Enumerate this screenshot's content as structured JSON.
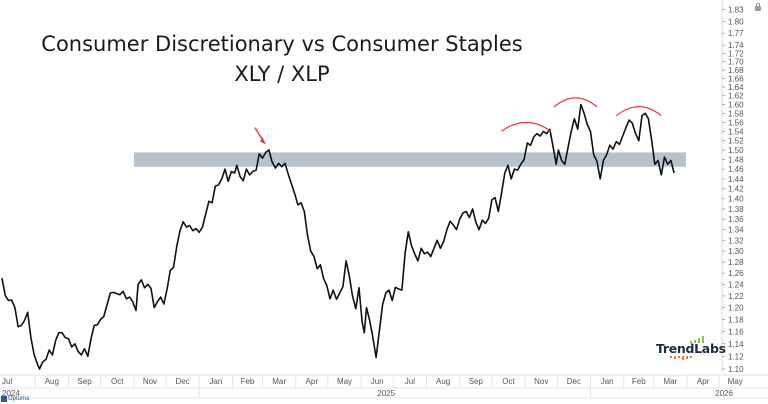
{
  "chart_data": {
    "type": "line",
    "title": "Consumer Discretionary vs Consumer Staples",
    "subtitle": "XLY / XLP",
    "xlabel": "",
    "ylabel": "",
    "y_scale": "log",
    "ylim": [
      1.095,
      1.84
    ],
    "xlim": [
      "2024-07-01",
      "2026-05-31"
    ],
    "grid": false,
    "y_ticks": [
      "1.83",
      "1.80",
      "1.77",
      "1.74",
      "1.72",
      "1.70",
      "1.68",
      "1.66",
      "1.64",
      "1.62",
      "1.60",
      "1.58",
      "1.56",
      "1.54",
      "1.52",
      "1.50",
      "1.48",
      "1.46",
      "1.44",
      "1.42",
      "1.40",
      "1.38",
      "1.36",
      "1.34",
      "1.32",
      "1.30",
      "1.28",
      "1.26",
      "1.24",
      "1.22",
      "1.20",
      "1.18",
      "1.16",
      "1.14",
      "1.12",
      "1.10"
    ],
    "x_month_ticks": [
      {
        "label": "Jul",
        "date": "2024-07-01"
      },
      {
        "label": "Aug",
        "date": "2024-08-01"
      },
      {
        "label": "Sep",
        "date": "2024-09-01"
      },
      {
        "label": "Oct",
        "date": "2024-10-01"
      },
      {
        "label": "Nov",
        "date": "2024-11-01"
      },
      {
        "label": "Dec",
        "date": "2024-12-01"
      },
      {
        "label": "Jan",
        "date": "2025-01-01"
      },
      {
        "label": "Feb",
        "date": "2025-02-01"
      },
      {
        "label": "Mar",
        "date": "2025-03-01"
      },
      {
        "label": "Apr",
        "date": "2025-04-01"
      },
      {
        "label": "May",
        "date": "2025-05-01"
      },
      {
        "label": "Jun",
        "date": "2025-06-01"
      },
      {
        "label": "Jul",
        "date": "2025-07-01"
      },
      {
        "label": "Aug",
        "date": "2025-08-01"
      },
      {
        "label": "Sep",
        "date": "2025-09-01"
      },
      {
        "label": "Oct",
        "date": "2025-10-01"
      },
      {
        "label": "Nov",
        "date": "2025-11-01"
      },
      {
        "label": "Dec",
        "date": "2025-12-01"
      },
      {
        "label": "Jan",
        "date": "2026-01-01"
      },
      {
        "label": "Feb",
        "date": "2026-02-01"
      },
      {
        "label": "Mar",
        "date": "2026-03-01"
      },
      {
        "label": "Apr",
        "date": "2026-04-01"
      },
      {
        "label": "May",
        "date": "2026-05-01"
      }
    ],
    "x_year_labels": [
      {
        "label": "2024",
        "date": "2024-07-01",
        "align": "left"
      },
      {
        "label": "2025",
        "date": "2025-07-01",
        "align": "center"
      },
      {
        "label": "2026",
        "date": "2026-05-01",
        "align": "left"
      }
    ],
    "series": [
      {
        "name": "XLY / XLP",
        "color": "#111111",
        "points": [
          [
            "2024-07-01",
            1.251
          ],
          [
            "2024-07-04",
            1.221
          ],
          [
            "2024-07-07",
            1.212
          ],
          [
            "2024-07-10",
            1.213
          ],
          [
            "2024-07-13",
            1.2
          ],
          [
            "2024-07-16",
            1.168
          ],
          [
            "2024-07-19",
            1.17
          ],
          [
            "2024-07-22",
            1.178
          ],
          [
            "2024-07-25",
            1.192
          ],
          [
            "2024-07-28",
            1.15
          ],
          [
            "2024-07-31",
            1.122
          ],
          [
            "2024-08-03",
            1.108
          ],
          [
            "2024-08-05",
            1.1
          ],
          [
            "2024-08-08",
            1.111
          ],
          [
            "2024-08-11",
            1.115
          ],
          [
            "2024-08-14",
            1.13
          ],
          [
            "2024-08-17",
            1.122
          ],
          [
            "2024-08-20",
            1.145
          ],
          [
            "2024-08-23",
            1.158
          ],
          [
            "2024-08-26",
            1.158
          ],
          [
            "2024-08-29",
            1.15
          ],
          [
            "2024-09-01",
            1.148
          ],
          [
            "2024-09-04",
            1.135
          ],
          [
            "2024-09-07",
            1.14
          ],
          [
            "2024-09-10",
            1.128
          ],
          [
            "2024-09-13",
            1.122
          ],
          [
            "2024-09-16",
            1.132
          ],
          [
            "2024-09-19",
            1.12
          ],
          [
            "2024-09-22",
            1.148
          ],
          [
            "2024-09-25",
            1.17
          ],
          [
            "2024-09-28",
            1.171
          ],
          [
            "2024-10-01",
            1.18
          ],
          [
            "2024-10-04",
            1.185
          ],
          [
            "2024-10-07",
            1.205
          ],
          [
            "2024-10-10",
            1.225
          ],
          [
            "2024-10-13",
            1.226
          ],
          [
            "2024-10-16",
            1.224
          ],
          [
            "2024-10-19",
            1.222
          ],
          [
            "2024-10-22",
            1.228
          ],
          [
            "2024-10-25",
            1.215
          ],
          [
            "2024-10-28",
            1.218
          ],
          [
            "2024-10-31",
            1.21
          ],
          [
            "2024-11-01",
            1.204
          ],
          [
            "2024-11-03",
            1.195
          ],
          [
            "2024-11-05",
            1.24
          ],
          [
            "2024-11-08",
            1.248
          ],
          [
            "2024-11-11",
            1.234
          ],
          [
            "2024-11-14",
            1.24
          ],
          [
            "2024-11-17",
            1.233
          ],
          [
            "2024-11-20",
            1.2
          ],
          [
            "2024-11-23",
            1.21
          ],
          [
            "2024-11-26",
            1.218
          ],
          [
            "2024-11-29",
            1.206
          ],
          [
            "2024-12-02",
            1.232
          ],
          [
            "2024-12-05",
            1.265
          ],
          [
            "2024-12-08",
            1.27
          ],
          [
            "2024-12-11",
            1.308
          ],
          [
            "2024-12-14",
            1.338
          ],
          [
            "2024-12-17",
            1.355
          ],
          [
            "2024-12-20",
            1.345
          ],
          [
            "2024-12-23",
            1.348
          ],
          [
            "2024-12-26",
            1.338
          ],
          [
            "2024-12-29",
            1.342
          ],
          [
            "2025-01-01",
            1.335
          ],
          [
            "2025-01-04",
            1.345
          ],
          [
            "2025-01-07",
            1.37
          ],
          [
            "2025-01-10",
            1.395
          ],
          [
            "2025-01-13",
            1.392
          ],
          [
            "2025-01-16",
            1.425
          ],
          [
            "2025-01-19",
            1.428
          ],
          [
            "2025-01-22",
            1.44
          ],
          [
            "2025-01-25",
            1.46
          ],
          [
            "2025-01-28",
            1.435
          ],
          [
            "2025-01-31",
            1.455
          ],
          [
            "2025-02-03",
            1.452
          ],
          [
            "2025-02-05",
            1.468
          ],
          [
            "2025-02-08",
            1.445
          ],
          [
            "2025-02-11",
            1.436
          ],
          [
            "2025-02-14",
            1.46
          ],
          [
            "2025-02-17",
            1.448
          ],
          [
            "2025-02-20",
            1.455
          ],
          [
            "2025-02-23",
            1.458
          ],
          [
            "2025-02-26",
            1.492
          ],
          [
            "2025-03-01",
            1.483
          ],
          [
            "2025-03-04",
            1.495
          ],
          [
            "2025-03-07",
            1.5
          ],
          [
            "2025-03-10",
            1.475
          ],
          [
            "2025-03-13",
            1.462
          ],
          [
            "2025-03-16",
            1.472
          ],
          [
            "2025-03-19",
            1.465
          ],
          [
            "2025-03-22",
            1.472
          ],
          [
            "2025-03-25",
            1.45
          ],
          [
            "2025-03-28",
            1.43
          ],
          [
            "2025-03-31",
            1.41
          ],
          [
            "2025-04-03",
            1.388
          ],
          [
            "2025-04-06",
            1.392
          ],
          [
            "2025-04-09",
            1.375
          ],
          [
            "2025-04-12",
            1.33
          ],
          [
            "2025-04-15",
            1.3
          ],
          [
            "2025-04-18",
            1.29
          ],
          [
            "2025-04-21",
            1.268
          ],
          [
            "2025-04-24",
            1.275
          ],
          [
            "2025-04-27",
            1.25
          ],
          [
            "2025-04-30",
            1.238
          ],
          [
            "2025-05-03",
            1.215
          ],
          [
            "2025-05-06",
            1.23
          ],
          [
            "2025-05-09",
            1.214
          ],
          [
            "2025-05-12",
            1.225
          ],
          [
            "2025-05-15",
            1.236
          ],
          [
            "2025-05-18",
            1.282
          ],
          [
            "2025-05-21",
            1.255
          ],
          [
            "2025-05-24",
            1.22
          ],
          [
            "2025-05-27",
            1.198
          ],
          [
            "2025-05-30",
            1.234
          ],
          [
            "2025-06-02",
            1.175
          ],
          [
            "2025-06-04",
            1.158
          ],
          [
            "2025-06-06",
            1.2
          ],
          [
            "2025-06-09",
            1.178
          ],
          [
            "2025-06-12",
            1.15
          ],
          [
            "2025-06-15",
            1.118
          ],
          [
            "2025-06-18",
            1.16
          ],
          [
            "2025-06-21",
            1.205
          ],
          [
            "2025-06-24",
            1.225
          ],
          [
            "2025-06-27",
            1.23
          ],
          [
            "2025-06-30",
            1.212
          ],
          [
            "2025-07-03",
            1.235
          ],
          [
            "2025-07-06",
            1.232
          ],
          [
            "2025-07-09",
            1.23
          ],
          [
            "2025-07-12",
            1.296
          ],
          [
            "2025-07-15",
            1.336
          ],
          [
            "2025-07-18",
            1.31
          ],
          [
            "2025-07-21",
            1.295
          ],
          [
            "2025-07-24",
            1.282
          ],
          [
            "2025-07-27",
            1.305
          ],
          [
            "2025-07-30",
            1.295
          ],
          [
            "2025-08-02",
            1.298
          ],
          [
            "2025-08-05",
            1.29
          ],
          [
            "2025-08-08",
            1.305
          ],
          [
            "2025-08-11",
            1.32
          ],
          [
            "2025-08-14",
            1.305
          ],
          [
            "2025-08-17",
            1.318
          ],
          [
            "2025-08-20",
            1.34
          ],
          [
            "2025-08-23",
            1.356
          ],
          [
            "2025-08-26",
            1.349
          ],
          [
            "2025-08-29",
            1.34
          ],
          [
            "2025-09-01",
            1.36
          ],
          [
            "2025-09-04",
            1.372
          ],
          [
            "2025-09-07",
            1.375
          ],
          [
            "2025-09-10",
            1.363
          ],
          [
            "2025-09-13",
            1.38
          ],
          [
            "2025-09-16",
            1.355
          ],
          [
            "2025-09-19",
            1.34
          ],
          [
            "2025-09-22",
            1.358
          ],
          [
            "2025-09-25",
            1.352
          ],
          [
            "2025-09-28",
            1.362
          ],
          [
            "2025-10-01",
            1.398
          ],
          [
            "2025-10-04",
            1.402
          ],
          [
            "2025-10-07",
            1.375
          ],
          [
            "2025-10-10",
            1.412
          ],
          [
            "2025-10-13",
            1.452
          ],
          [
            "2025-10-16",
            1.468
          ],
          [
            "2025-10-19",
            1.44
          ],
          [
            "2025-10-22",
            1.46
          ],
          [
            "2025-10-25",
            1.458
          ],
          [
            "2025-10-28",
            1.47
          ],
          [
            "2025-10-31",
            1.48
          ],
          [
            "2025-11-03",
            1.515
          ],
          [
            "2025-11-06",
            1.51
          ],
          [
            "2025-11-09",
            1.528
          ],
          [
            "2025-11-12",
            1.535
          ],
          [
            "2025-11-15",
            1.53
          ],
          [
            "2025-11-18",
            1.54
          ],
          [
            "2025-11-21",
            1.535
          ],
          [
            "2025-11-24",
            1.545
          ],
          [
            "2025-11-27",
            1.508
          ],
          [
            "2025-11-30",
            1.47
          ],
          [
            "2025-12-02",
            1.5
          ],
          [
            "2025-12-05",
            1.478
          ],
          [
            "2025-12-08",
            1.47
          ],
          [
            "2025-12-11",
            1.505
          ],
          [
            "2025-12-14",
            1.54
          ],
          [
            "2025-12-17",
            1.568
          ],
          [
            "2025-12-20",
            1.545
          ],
          [
            "2025-12-23",
            1.6
          ],
          [
            "2025-12-26",
            1.58
          ],
          [
            "2025-12-29",
            1.555
          ],
          [
            "2026-01-01",
            1.54
          ],
          [
            "2026-01-04",
            1.49
          ],
          [
            "2026-01-07",
            1.476
          ],
          [
            "2026-01-10",
            1.44
          ],
          [
            "2026-01-13",
            1.478
          ],
          [
            "2026-01-16",
            1.49
          ],
          [
            "2026-01-19",
            1.51
          ],
          [
            "2026-01-22",
            1.502
          ],
          [
            "2026-01-25",
            1.518
          ],
          [
            "2026-01-28",
            1.512
          ],
          [
            "2026-01-31",
            1.53
          ],
          [
            "2026-02-03",
            1.548
          ],
          [
            "2026-02-06",
            1.565
          ],
          [
            "2026-02-09",
            1.558
          ],
          [
            "2026-02-12",
            1.535
          ],
          [
            "2026-02-15",
            1.52
          ],
          [
            "2026-02-18",
            1.575
          ],
          [
            "2026-02-21",
            1.58
          ],
          [
            "2026-02-24",
            1.568
          ],
          [
            "2026-02-27",
            1.522
          ],
          [
            "2026-03-02",
            1.47
          ],
          [
            "2026-03-05",
            1.478
          ],
          [
            "2026-03-08",
            1.448
          ],
          [
            "2026-03-11",
            1.485
          ],
          [
            "2026-03-14",
            1.47
          ],
          [
            "2026-03-17",
            1.478
          ],
          [
            "2026-03-20",
            1.452
          ]
        ]
      }
    ],
    "annotations": [
      {
        "type": "horizontal-band",
        "from": 1.465,
        "to": 1.495,
        "x_start": "2024-11-01",
        "x_end": "2026-03-31",
        "color": "#b9c2cc"
      },
      {
        "type": "arrow",
        "target_date": "2025-03-07",
        "target_value": 1.505,
        "color": "#e53935"
      },
      {
        "type": "arc",
        "x_start": "2025-10-10",
        "x_end": "2025-11-25",
        "peak_value": 1.56,
        "color": "#e53935"
      },
      {
        "type": "arc",
        "x_start": "2025-11-28",
        "x_end": "2026-01-07",
        "peak_value": 1.615,
        "color": "#e53935"
      },
      {
        "type": "arc",
        "x_start": "2026-01-25",
        "x_end": "2026-03-08",
        "peak_value": 1.595,
        "color": "#e53935"
      }
    ]
  },
  "branding": {
    "logo_text": "TrendLabs",
    "footer_text": "Optuma"
  }
}
